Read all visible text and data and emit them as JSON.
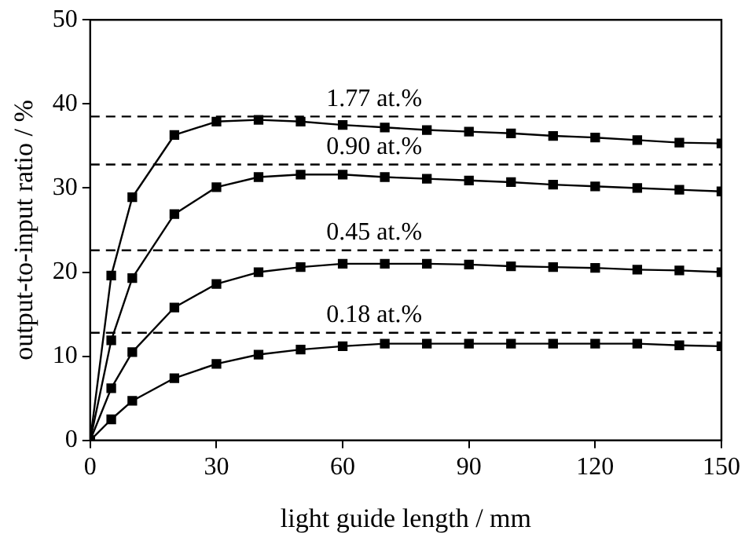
{
  "chart_data": {
    "type": "line",
    "xlabel": "light guide length / mm",
    "ylabel": "output-to-input ratio / %",
    "x": [
      0,
      5,
      10,
      20,
      30,
      40,
      50,
      60,
      70,
      80,
      90,
      100,
      110,
      120,
      130,
      140,
      150
    ],
    "series": [
      {
        "color": "#000000",
        "values": [
          0,
          19.6,
          28.9,
          36.3,
          37.9,
          38.1,
          37.9,
          37.5,
          37.2,
          36.9,
          36.7,
          36.5,
          36.2,
          36.0,
          35.7,
          35.4,
          35.3
        ]
      },
      {
        "color": "#000000",
        "values": [
          0,
          11.9,
          19.3,
          26.9,
          30.1,
          31.3,
          31.6,
          31.6,
          31.3,
          31.1,
          30.9,
          30.7,
          30.4,
          30.2,
          30.0,
          29.8,
          29.6
        ]
      },
      {
        "color": "#000000",
        "values": [
          0,
          6.2,
          10.5,
          15.8,
          18.6,
          20.0,
          20.6,
          21.0,
          21.0,
          21.0,
          20.9,
          20.7,
          20.6,
          20.5,
          20.3,
          20.2,
          20.0
        ]
      },
      {
        "color": "#000000",
        "values": [
          0,
          2.5,
          4.7,
          7.4,
          9.1,
          10.2,
          10.8,
          11.2,
          11.5,
          11.5,
          11.5,
          11.5,
          11.5,
          11.5,
          11.5,
          11.3,
          11.2
        ]
      }
    ],
    "ref_lines": [
      {
        "axis": "y",
        "value": 38.5,
        "label": "1.77 at.%",
        "color": "#000000",
        "line_style": "dashed"
      },
      {
        "axis": "y",
        "value": 32.8,
        "label": "0.90 at.%",
        "color": "#000000",
        "line_style": "dashed"
      },
      {
        "axis": "y",
        "value": 22.6,
        "label": "0.45 at.%",
        "color": "#000000",
        "line_style": "dashed"
      },
      {
        "axis": "y",
        "value": 12.8,
        "label": "0.18 at.%",
        "color": "#000000",
        "line_style": "dashed"
      }
    ],
    "xlim": [
      0,
      150
    ],
    "xticks": [
      0,
      30,
      60,
      90,
      120,
      150
    ],
    "ylim": [
      0,
      50
    ],
    "yticks": [
      0,
      10,
      20,
      30,
      40,
      50
    ],
    "grid": false,
    "legend": false,
    "marker": "square",
    "line_style": "solid"
  }
}
